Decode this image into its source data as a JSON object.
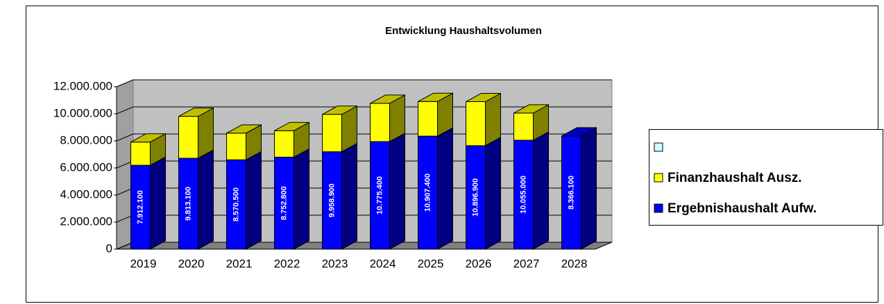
{
  "chart_data": {
    "type": "bar3d_stacked",
    "title": "Entwicklung Haushaltsvolumen",
    "categories": [
      "2019",
      "2020",
      "2021",
      "2022",
      "2023",
      "2024",
      "2025",
      "2026",
      "2027",
      "2028"
    ],
    "series": [
      {
        "name": "Ergebnishaushalt Aufw.",
        "color": "#0000ff",
        "values": [
          6200000,
          6720000,
          6600000,
          6800000,
          7200000,
          7950000,
          8350000,
          7650000,
          8050000,
          8366100
        ]
      },
      {
        "name": "Finanzhaushalt Ausz.",
        "color": "#ffff00",
        "values": [
          1712100,
          3093100,
          1970500,
          1952800,
          2758900,
          2825400,
          2557400,
          3246900,
          2005000,
          0
        ]
      },
      {
        "color": "#ccffff",
        "values": [
          7912100,
          9813100,
          8570500,
          8752800,
          9958900,
          10775400,
          10907400,
          10896900,
          10055000,
          8366100
        ],
        "value_labels": [
          "7.912.100",
          "9.813.100",
          "8.570.500",
          "8.752.800",
          "9.958.900",
          "10.775.400",
          "10.907.400",
          "10.896.900",
          "10.055.000",
          "8.366.100"
        ]
      }
    ],
    "ylim": [
      0,
      12000000
    ],
    "yticks": [
      0,
      {
        "value": 2000000,
        "label": "2.000.000"
      },
      {
        "value": 4000000,
        "label": "4.000.000"
      },
      {
        "value": 6000000,
        "label": "6.000.000"
      },
      {
        "value": 8000000,
        "label": "8.000.000"
      },
      {
        "value": 10000000,
        "label": "10.000.000"
      },
      {
        "value": 12000000,
        "label": "12.000.000"
      }
    ],
    "grid": true,
    "legend": "right"
  }
}
